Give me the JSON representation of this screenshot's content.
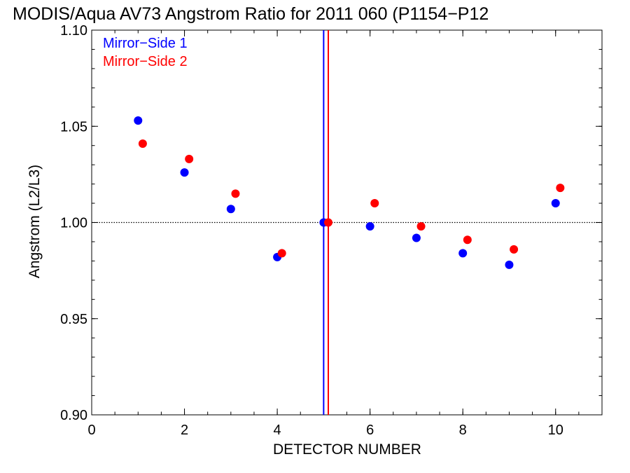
{
  "chart_data": {
    "type": "scatter",
    "title": "MODIS/Aqua AV73 Angstrom Ratio for 2011 060 (P1154−P12",
    "xlabel": "DETECTOR NUMBER",
    "ylabel": "Angstrom (L2/L3)",
    "xlim": [
      0,
      11
    ],
    "ylim": [
      0.9,
      1.1
    ],
    "x_ticks": [
      0,
      2,
      4,
      6,
      8,
      10
    ],
    "x_tick_labels": [
      "0",
      "2",
      "4",
      "6",
      "8",
      "10"
    ],
    "y_ticks": [
      0.9,
      0.95,
      1.0,
      1.05,
      1.1
    ],
    "y_tick_labels": [
      "0.90",
      "0.95",
      "1.00",
      "1.05",
      "1.10"
    ],
    "x_minor_step": 0.5,
    "y_minor_step": 0.01,
    "grid": false,
    "legend_position": "top-left",
    "reference_line": {
      "y": 1.0,
      "style": "dotted",
      "color": "#000000"
    },
    "vertical_lines": [
      {
        "x": 5.0,
        "color": "#0000ff"
      },
      {
        "x": 5.1,
        "color": "#ff0000"
      }
    ],
    "series": [
      {
        "name": "Mirror−Side 1",
        "color": "#0000ff",
        "x": [
          1,
          2,
          3,
          4,
          5,
          6,
          7,
          8,
          9,
          10
        ],
        "values": [
          1.053,
          1.026,
          1.007,
          0.982,
          1.0,
          0.998,
          0.992,
          0.984,
          0.978,
          1.01
        ]
      },
      {
        "name": "Mirror−Side 2",
        "color": "#ff0000",
        "x": [
          1.1,
          2.1,
          3.1,
          4.1,
          5.1,
          6.1,
          7.1,
          8.1,
          9.1,
          10.1
        ],
        "values": [
          1.041,
          1.033,
          1.015,
          0.984,
          1.0,
          1.01,
          0.998,
          0.991,
          0.986,
          1.018
        ]
      }
    ]
  }
}
